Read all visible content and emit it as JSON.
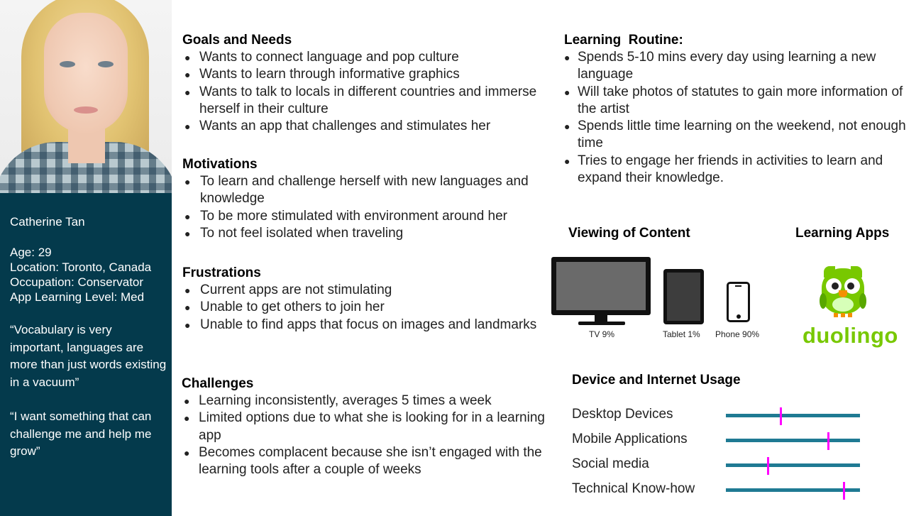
{
  "persona": {
    "name": "Catherine Tan",
    "age": "Age: 29",
    "location": "Location: Toronto, Canada",
    "occupation": "Occupation: Conservator",
    "app_level": "App Learning Level: Med",
    "quote1": "“Vocabulary is very important, languages are more than just words existing in a vacuum”",
    "quote2": "“I want something that can challenge me and help me grow”"
  },
  "goals": {
    "title": "Goals and Needs",
    "items": [
      "Wants to connect language and pop culture",
      "Wants to learn through informative graphics",
      "Wants to talk to locals in different countries and immerse herself in their culture",
      "Wants an app that challenges and stimulates her"
    ]
  },
  "motivations": {
    "title": "Motivations",
    "items": [
      "To learn and challenge herself with new languages and knowledge",
      "To be more stimulated with environment around her",
      "To not feel isolated when traveling"
    ]
  },
  "frustrations": {
    "title": "Frustrations",
    "items": [
      "Current apps are not stimulating",
      "Unable to get others to join her",
      "Unable to find apps that focus on images and landmarks"
    ]
  },
  "challenges": {
    "title": "Challenges",
    "items": [
      "Learning inconsistently, averages 5 times a week",
      "Limited options due to what she is looking for in a learning app",
      "Becomes complacent because she isn’t engaged with the learning tools after a couple of weeks"
    ]
  },
  "routine": {
    "title": "Learning  Routine:",
    "items": [
      "Spends 5-10 mins every day using learning a new language",
      "Will take photos of statutes to gain more information of the artist",
      "Spends little time learning on the weekend, not enough time",
      "Tries to engage her friends in activities to learn and expand their knowledge."
    ]
  },
  "viewing": {
    "title": "Viewing of Content",
    "devices": [
      {
        "label": "TV 9%",
        "icon": "tv-icon"
      },
      {
        "label": "Tablet 1%",
        "icon": "tablet-icon"
      },
      {
        "label": "Phone 90%",
        "icon": "phone-icon"
      }
    ]
  },
  "apps": {
    "title": "Learning Apps",
    "logo_text": "duolingo",
    "logo_color": "#78c800"
  },
  "usage": {
    "title": "Device and Internet Usage",
    "track_color": "#1f7a93",
    "marker_color": "#ff00ff",
    "items": [
      {
        "label": "Desktop Devices",
        "level": 0.41
      },
      {
        "label": "Mobile Applications",
        "level": 0.76
      },
      {
        "label": "Social media",
        "level": 0.31
      },
      {
        "label": "Technical Know-how",
        "level": 0.88
      }
    ]
  },
  "colors": {
    "sidebar": "#043a4c"
  }
}
